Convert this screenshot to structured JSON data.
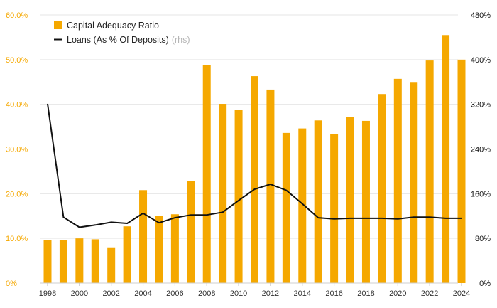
{
  "chart_data": {
    "type": "bar",
    "title": "",
    "xlabel": "",
    "ylabel": "",
    "x": [
      1998,
      1999,
      2000,
      2001,
      2002,
      2003,
      2004,
      2005,
      2006,
      2007,
      2008,
      2009,
      2010,
      2011,
      2012,
      2013,
      2014,
      2015,
      2016,
      2017,
      2018,
      2019,
      2020,
      2021,
      2022,
      2023,
      2024
    ],
    "x_tick_labels": [
      "1998",
      "2000",
      "2002",
      "2004",
      "2006",
      "2008",
      "2010",
      "2012",
      "2014",
      "2016",
      "2018",
      "2020",
      "2022",
      "2024"
    ],
    "y_left": {
      "ylim": [
        0,
        60
      ],
      "tick_labels": [
        "0%",
        "10.0%",
        "20.0%",
        "30.0%",
        "40.0%",
        "50.0%",
        "60.0%"
      ],
      "color": "#f5a800"
    },
    "y_right": {
      "ylim": [
        0,
        480
      ],
      "tick_labels": [
        "0%",
        "80%",
        "160%",
        "240%",
        "320%",
        "400%",
        "480%"
      ],
      "color": "#111111"
    },
    "grid": true,
    "legend_position": "top-left",
    "series": [
      {
        "name": "Capital Adequacy Ratio",
        "kind": "bar",
        "axis": "left",
        "color": "#f5a800",
        "values": [
          9.6,
          9.6,
          10.0,
          9.8,
          8.0,
          12.7,
          20.8,
          15.1,
          15.4,
          22.8,
          48.8,
          40.1,
          38.7,
          46.3,
          43.3,
          33.6,
          34.6,
          36.4,
          33.3,
          37.1,
          36.3,
          42.3,
          45.7,
          45.0,
          49.8,
          55.5,
          50.0
        ]
      },
      {
        "name": "Loans (As % Of Deposits)",
        "legend_suffix": "(rhs)",
        "kind": "line",
        "axis": "right",
        "color": "#111111",
        "values": [
          321,
          118,
          100,
          104,
          109,
          107,
          125,
          108,
          117,
          122,
          122,
          127,
          148,
          168,
          177,
          166,
          142,
          117,
          115,
          116,
          116,
          116,
          115,
          118,
          118,
          116,
          116
        ]
      }
    ]
  }
}
